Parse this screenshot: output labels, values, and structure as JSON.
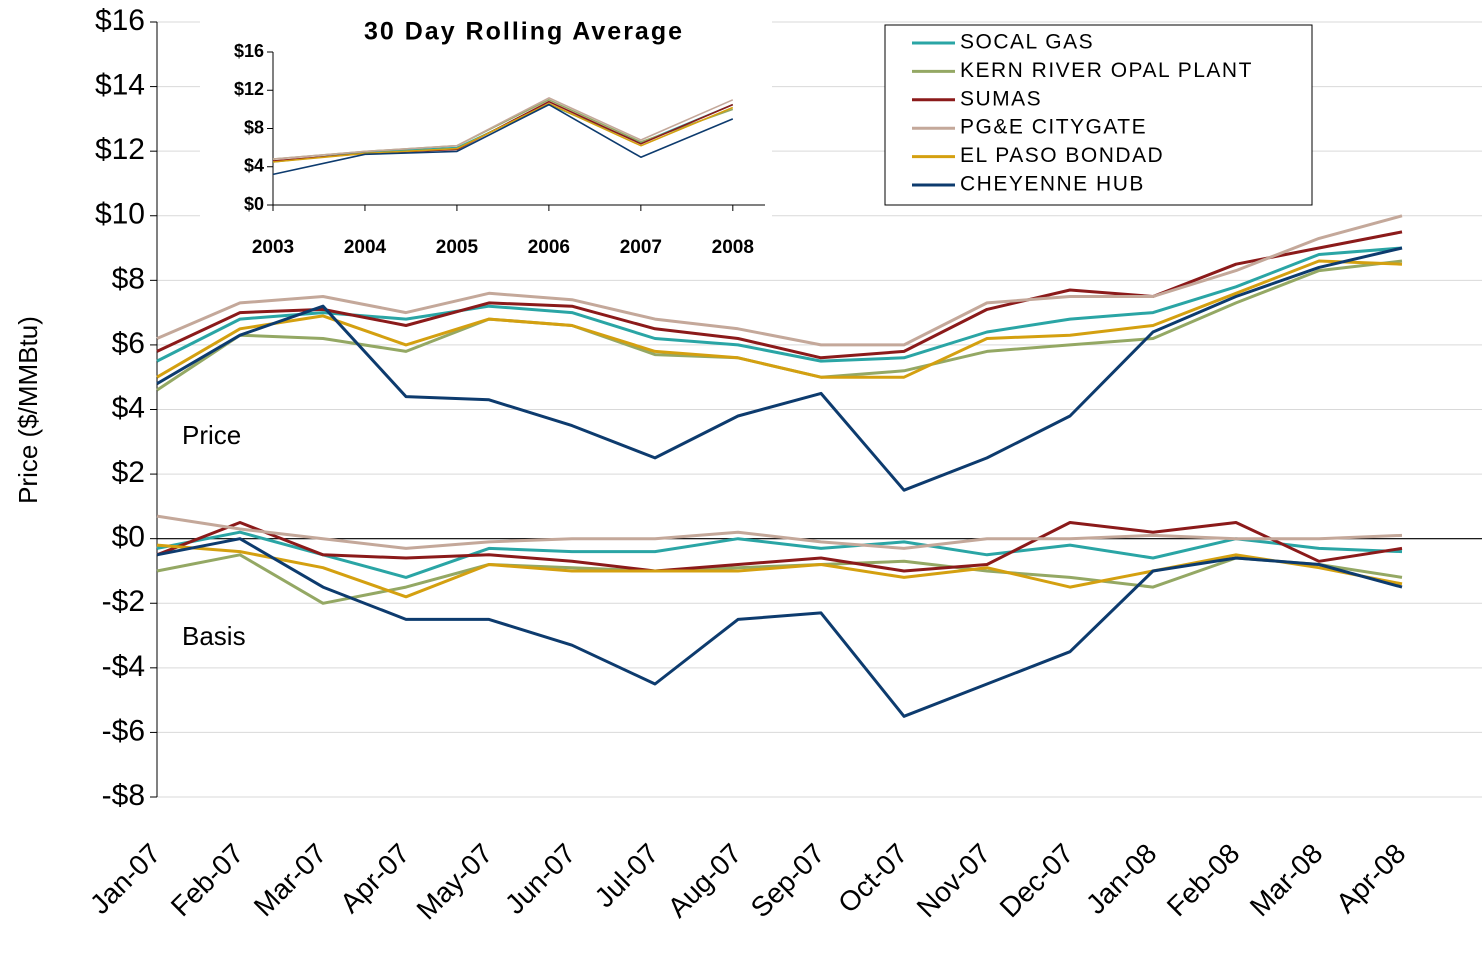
{
  "chart_data": [
    {
      "type": "line",
      "y_label": "Price ($/MMBtu)",
      "annotations": [
        "Price",
        "Basis"
      ],
      "categories": [
        "Jan-07",
        "Feb-07",
        "Mar-07",
        "Apr-07",
        "May-07",
        "Jun-07",
        "Jul-07",
        "Aug-07",
        "Sep-07",
        "Oct-07",
        "Nov-07",
        "Dec-07",
        "Jan-08",
        "Feb-08",
        "Mar-08",
        "Apr-08"
      ],
      "ylim": [
        -8,
        16
      ],
      "yticks": [
        {
          "value": 16,
          "label": "$16"
        },
        {
          "value": 14,
          "label": "$14"
        },
        {
          "value": 12,
          "label": "$12"
        },
        {
          "value": 10,
          "label": "$10"
        },
        {
          "value": 8,
          "label": "$8"
        },
        {
          "value": 6,
          "label": "$6"
        },
        {
          "value": 4,
          "label": "$4"
        },
        {
          "value": 2,
          "label": "$2"
        },
        {
          "value": 0,
          "label": "$0"
        },
        {
          "value": -2,
          "label": "-$2"
        },
        {
          "value": -4,
          "label": "-$4"
        },
        {
          "value": -6,
          "label": "-$6"
        },
        {
          "value": -8,
          "label": "-$8"
        }
      ],
      "grid": true,
      "legend": "top-right",
      "series": [
        {
          "name": "SOCAL GAS",
          "color": "#2aa5a5",
          "values": [
            5.5,
            6.8,
            7.0,
            6.8,
            7.2,
            7.0,
            6.2,
            6.0,
            5.5,
            5.6,
            6.4,
            6.8,
            7.0,
            7.8,
            8.8,
            9.0
          ],
          "basis_values": [
            -0.3,
            0.2,
            -0.5,
            -1.2,
            -0.3,
            -0.4,
            -0.4,
            0.0,
            -0.3,
            -0.1,
            -0.5,
            -0.2,
            -0.6,
            0.0,
            -0.3,
            -0.4
          ]
        },
        {
          "name": "KERN RIVER OPAL PLANT",
          "color": "#94a864",
          "values": [
            4.6,
            6.3,
            6.2,
            5.8,
            6.8,
            6.6,
            5.7,
            5.6,
            5.0,
            5.2,
            5.8,
            6.0,
            6.2,
            7.3,
            8.3,
            8.6
          ],
          "basis_values": [
            -1.0,
            -0.5,
            -2.0,
            -1.5,
            -0.8,
            -0.9,
            -1.0,
            -0.9,
            -0.8,
            -0.7,
            -1.0,
            -1.2,
            -1.5,
            -0.6,
            -0.8,
            -1.2
          ]
        },
        {
          "name": "SUMAS",
          "color": "#8b1a1a",
          "values": [
            5.8,
            7.0,
            7.1,
            6.6,
            7.3,
            7.2,
            6.5,
            6.2,
            5.6,
            5.8,
            7.1,
            7.7,
            7.5,
            8.5,
            9.0,
            9.5
          ],
          "basis_values": [
            -0.5,
            0.5,
            -0.5,
            -0.6,
            -0.5,
            -0.7,
            -1.0,
            -0.8,
            -0.6,
            -1.0,
            -0.8,
            0.5,
            0.2,
            0.5,
            -0.7,
            -0.3
          ]
        },
        {
          "name": "PG&E CITYGATE",
          "color": "#c4a89a",
          "values": [
            6.2,
            7.3,
            7.5,
            7.0,
            7.6,
            7.4,
            6.8,
            6.5,
            6.0,
            6.0,
            7.3,
            7.5,
            7.5,
            8.3,
            9.3,
            10.0
          ],
          "basis_values": [
            0.7,
            0.3,
            0.0,
            -0.3,
            -0.1,
            0.0,
            0.0,
            0.2,
            -0.1,
            -0.3,
            0.0,
            0.0,
            0.1,
            0.0,
            0.0,
            0.1
          ]
        },
        {
          "name": "EL PASO BONDAD",
          "color": "#d4a010",
          "values": [
            5.0,
            6.5,
            6.9,
            6.0,
            6.8,
            6.6,
            5.8,
            5.6,
            5.0,
            5.0,
            6.2,
            6.3,
            6.6,
            7.6,
            8.6,
            8.5
          ],
          "basis_values": [
            -0.2,
            -0.4,
            -0.9,
            -1.8,
            -0.8,
            -1.0,
            -1.0,
            -1.0,
            -0.8,
            -1.2,
            -0.9,
            -1.5,
            -1.0,
            -0.5,
            -0.9,
            -1.4
          ]
        },
        {
          "name": "CHEYENNE HUB",
          "color": "#0d3b6e",
          "values": [
            4.8,
            6.3,
            7.2,
            4.4,
            4.3,
            3.5,
            2.5,
            3.8,
            4.5,
            1.5,
            2.5,
            3.8,
            6.4,
            7.5,
            8.4,
            9.0
          ],
          "basis_values": [
            -0.5,
            0.0,
            -1.5,
            -2.5,
            -2.5,
            -3.3,
            -4.5,
            -2.5,
            -2.3,
            -5.5,
            -4.5,
            -3.5,
            -1.0,
            -0.6,
            -0.8,
            -1.5
          ]
        }
      ]
    },
    {
      "type": "line",
      "title": "30 Day Rolling Average",
      "x": [
        2003,
        2004,
        2005,
        2006,
        2007,
        2008
      ],
      "xlim": [
        2003,
        2008.35
      ],
      "xticks": [
        2003,
        2004,
        2005,
        2006,
        2007,
        2008
      ],
      "ylim": [
        0,
        16
      ],
      "yticks": [
        {
          "value": 16,
          "label": "$16"
        },
        {
          "value": 12,
          "label": "$12"
        },
        {
          "value": 8,
          "label": "$8"
        },
        {
          "value": 4,
          "label": "$4"
        },
        {
          "value": 0,
          "label": "$0"
        }
      ],
      "series": [
        {
          "color": "#2aa5a5",
          "values": [
            4.5,
            5.5,
            6.0,
            10.5,
            6.5,
            10.5
          ]
        },
        {
          "color": "#94a864",
          "values": [
            4.8,
            5.6,
            6.2,
            11.0,
            6.6,
            10.0
          ]
        },
        {
          "color": "#8b1a1a",
          "values": [
            4.6,
            5.4,
            5.8,
            10.8,
            6.4,
            10.5
          ]
        },
        {
          "color": "#c4a89a",
          "values": [
            4.8,
            5.6,
            6.2,
            11.2,
            6.8,
            11.0
          ]
        },
        {
          "color": "#d4a010",
          "values": [
            4.5,
            5.4,
            5.9,
            10.6,
            6.2,
            10.2
          ]
        },
        {
          "color": "#0d3b6e",
          "values": [
            3.2,
            5.3,
            5.6,
            10.5,
            5.0,
            9.0
          ]
        }
      ]
    }
  ]
}
